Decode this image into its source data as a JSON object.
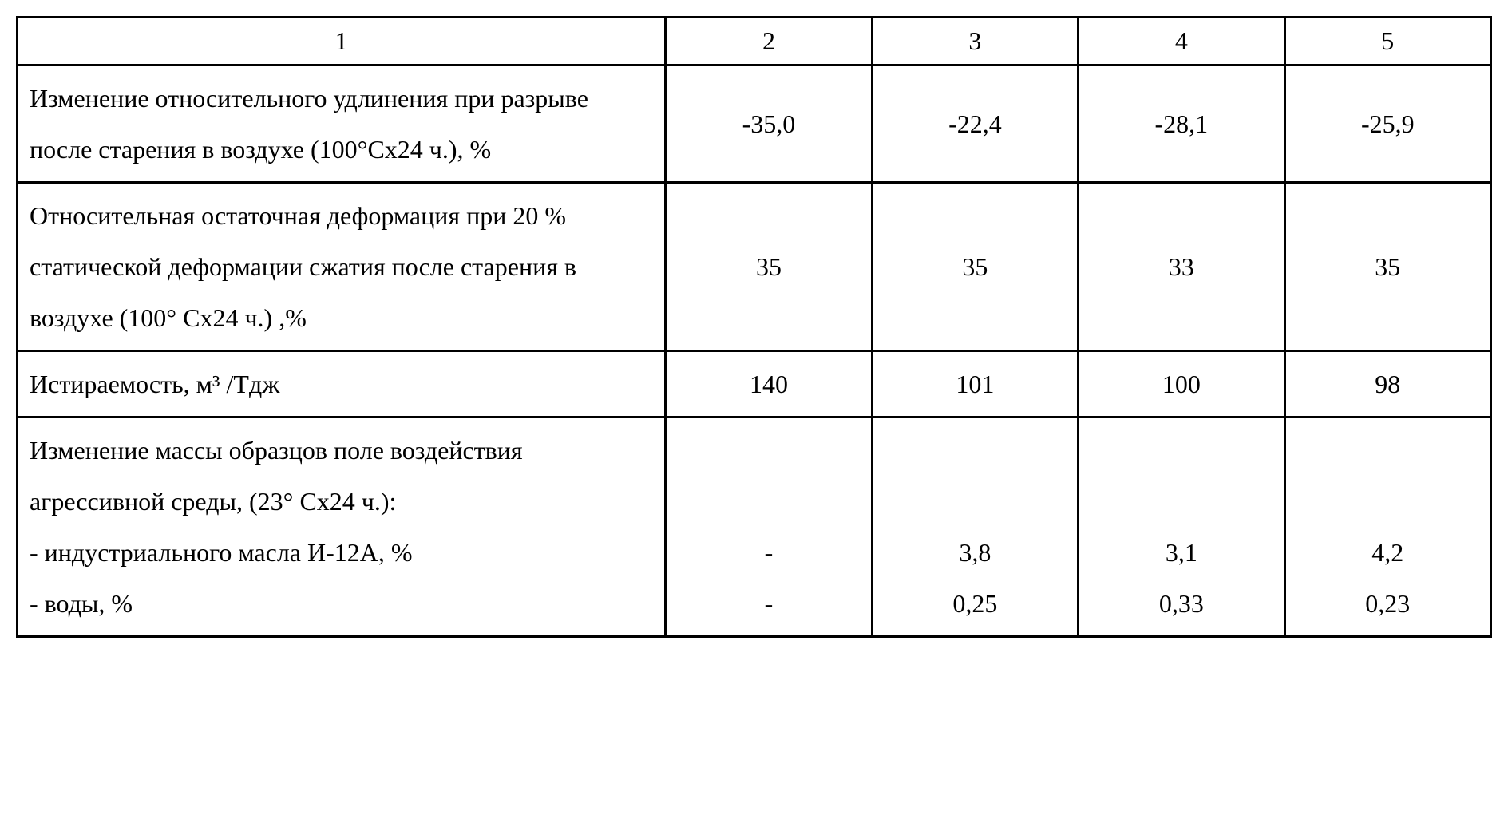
{
  "table": {
    "columns": [
      "1",
      "2",
      "3",
      "4",
      "5"
    ],
    "column_widths": [
      "44%",
      "14%",
      "14%",
      "14%",
      "14%"
    ],
    "border_color": "#000000",
    "background_color": "#ffffff",
    "text_color": "#000000",
    "font_family": "Times New Roman",
    "font_size_pt": 24,
    "rows": [
      {
        "label_html": "Изменение относительного удлинения при разрыве после старения в воздухе (100°Cх24 ч.), %",
        "values": [
          "-35,0",
          "-22,4",
          "-28,1",
          "-25,9"
        ]
      },
      {
        "label_html": "Относительная остаточная деформация при 20 % статической деформации сжатия после старения в воздухе (100° Cх24 ч.) ,%",
        "values": [
          "35",
          "35",
          "33",
          "35"
        ]
      },
      {
        "label_html": "Истираемость, м³ /Тдж",
        "values": [
          "140",
          "101",
          "100",
          "98"
        ]
      },
      {
        "label_lines": [
          "Изменение массы образцов  поле воздействия",
          "агрессивной среды, (23° Cх24 ч.):",
          "- индустриального масла И-12А, %",
          "- воды, %"
        ],
        "value_lines": [
          [
            "",
            "",
            "-",
            "-"
          ],
          [
            "",
            "",
            "3,8",
            "0,25"
          ],
          [
            "",
            "",
            "3,1",
            "0,33"
          ],
          [
            "",
            "",
            "4,2",
            "0,23"
          ]
        ]
      }
    ]
  }
}
